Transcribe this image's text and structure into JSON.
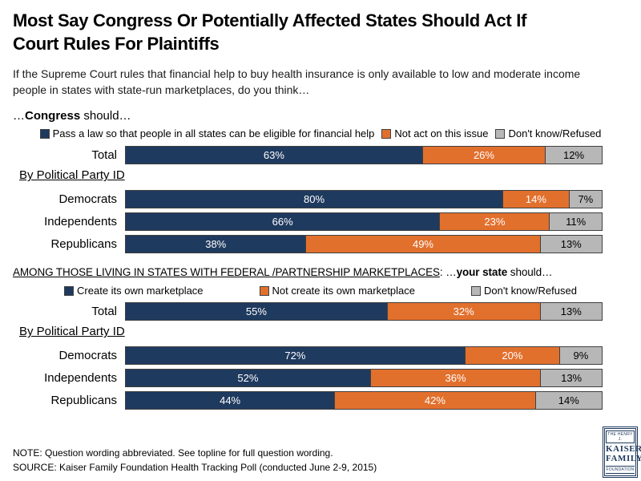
{
  "header": {
    "title_lines": [
      "Most Say Congress Or Potentially Affected States Should Act If",
      "Court Rules For Plaintiffs"
    ],
    "subtitle_lines": [
      "If the Supreme Court rules that financial help to buy health insurance is only available to low and moderate income",
      "people in states with state-run marketplaces, do you think…"
    ]
  },
  "colors": {
    "segments": [
      "#1f3a5f",
      "#e2702d",
      "#b7b7b7"
    ],
    "segment_label_colors": [
      "#ffffff",
      "#ffffff",
      "#000000"
    ],
    "segment_names": [
      "navy",
      "orange",
      "gray"
    ],
    "segment_border": "#404040",
    "logo_navy": "#1f3a5f"
  },
  "chart_data": [
    {
      "type": "bar",
      "stacked": true,
      "orientation": "horizontal",
      "unit": "%",
      "xlim": [
        0,
        100
      ],
      "legend_position": "top",
      "heading": {
        "pre": "…",
        "bold": "Congress",
        "rest": " should…"
      },
      "group_label": "By Political Party ID",
      "categories": [
        "Total",
        "Democrats",
        "Independents",
        "Republicans"
      ],
      "series": [
        {
          "name": "Pass a law so that people in all states can be eligible for financial help",
          "values": [
            63,
            80,
            66,
            38
          ]
        },
        {
          "name": "Not act on this issue",
          "values": [
            26,
            14,
            23,
            49
          ]
        },
        {
          "name": "Don't know/Refused",
          "values": [
            12,
            7,
            11,
            13
          ]
        }
      ]
    },
    {
      "type": "bar",
      "stacked": true,
      "orientation": "horizontal",
      "unit": "%",
      "xlim": [
        0,
        100
      ],
      "legend_position": "top",
      "heading": {
        "underlined": "AMONG THOSE LIVING IN STATES WITH FEDERAL /PARTNERSHIP MARKETPLACES",
        "sep": ": …",
        "bold": "your state",
        "rest": " should…"
      },
      "group_label": "By Political Party ID",
      "categories": [
        "Total",
        "Democrats",
        "Independents",
        "Republicans"
      ],
      "series": [
        {
          "name": "Create its own marketplace",
          "values": [
            55,
            72,
            52,
            44
          ]
        },
        {
          "name": "Not create its own marketplace",
          "values": [
            32,
            20,
            36,
            42
          ]
        },
        {
          "name": "Don't know/Refused",
          "values": [
            13,
            9,
            13,
            14
          ]
        }
      ]
    }
  ],
  "footer": {
    "note": "NOTE: Question wording abbreviated.  See topline for full question wording.",
    "source": "SOURCE: Kaiser Family Foundation Health Tracking Poll (conducted June 2-9, 2015)"
  },
  "logo": {
    "line1": "THE HENRY J.",
    "line2": "KAISER",
    "line3": "FAMILY",
    "line4": "FOUNDATION"
  }
}
